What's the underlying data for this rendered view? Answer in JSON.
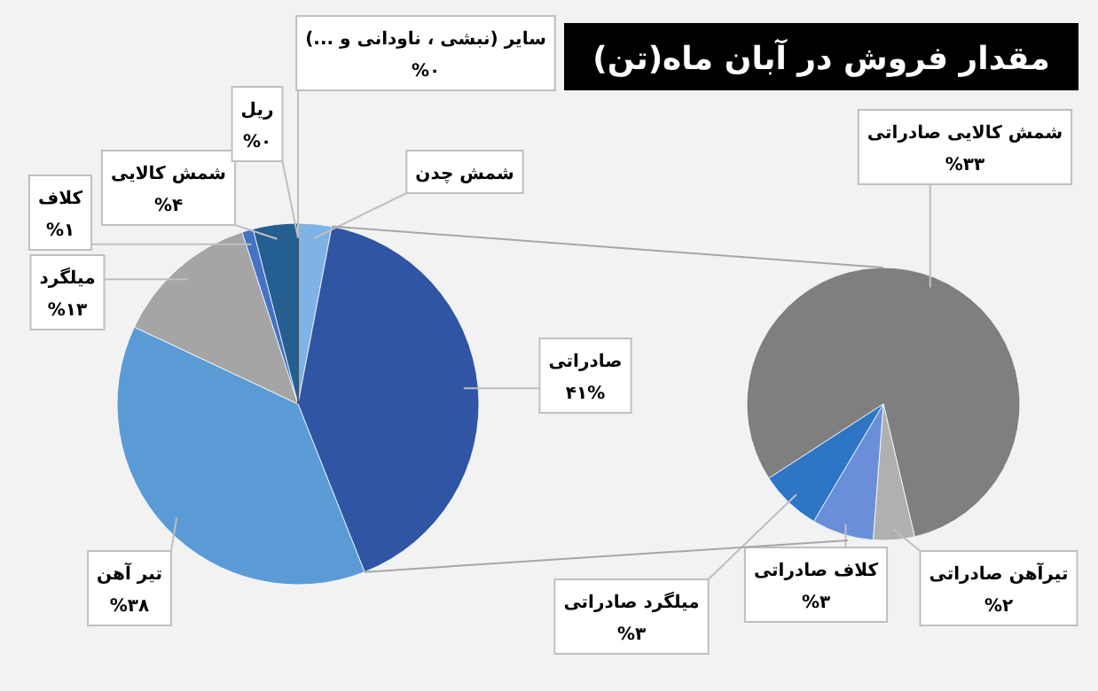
{
  "chart_data": [
    {
      "type": "pie",
      "title": "مقدار فروش در آبان ماه(تن)",
      "categories": [
        "شمش چدن",
        "صادراتی",
        "تیر آهن",
        "میلگرد",
        "کلاف",
        "شمش کالایی",
        "ریل",
        "سایر (نبشی ، ناودانی و ...)"
      ],
      "values": [
        3,
        41,
        38,
        13,
        1,
        4,
        0,
        0
      ],
      "colors": [
        "#7fb2e5",
        "#2f55a4",
        "#5b9bd5",
        "#a5a5a5",
        "#4472c4",
        "#255e91",
        "#1f4e79",
        "#44546a"
      ],
      "value_labels": [
        null,
        "۴۱%",
        "%۳۸",
        "%۱۳",
        "%۱",
        "%۴",
        "%۰",
        "%۰"
      ]
    },
    {
      "type": "pie",
      "categories": [
        "شمش کالایی صادراتی",
        "تیرآهن صادراتی",
        "کلاف صادراتی",
        "میلگرد صادراتی"
      ],
      "values": [
        33,
        2,
        3,
        3
      ],
      "colors": [
        "#7f7f7f",
        "#b0b0b0",
        "#6a8fd8",
        "#2e75c6"
      ],
      "value_labels": [
        "%۳۳",
        "%۲",
        "%۳",
        "%۳"
      ]
    }
  ]
}
